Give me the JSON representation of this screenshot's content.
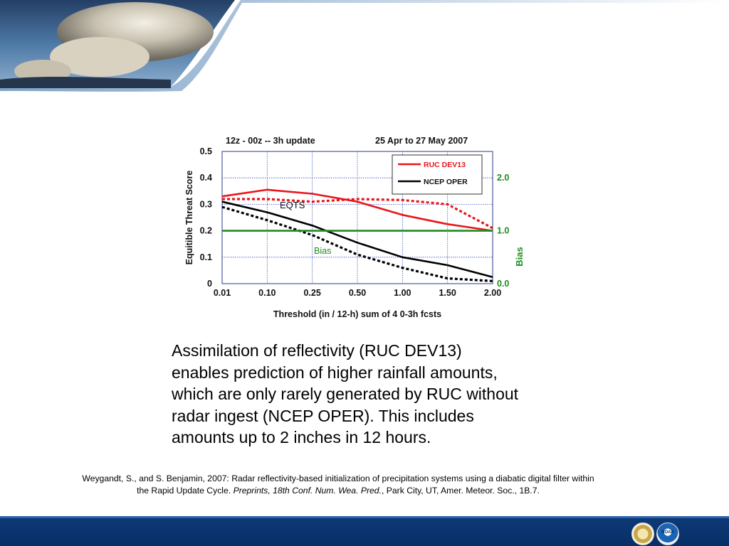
{
  "chart_data": {
    "type": "line",
    "title": "12z - 00z  --  3h update",
    "subtitle": "25 Apr to 27 May  2007",
    "xlabel": "Threshold (in / 12-h)    sum of 4 0-3h fcsts",
    "ylabel": "Equitible Threat Score",
    "y2label": "Bias",
    "categories": [
      "0.01",
      "0.10",
      "0.25",
      "0.50",
      "1.00",
      "1.50",
      "2.00"
    ],
    "ylim": [
      0,
      0.5
    ],
    "yticks": [
      "0.5",
      "0.4",
      "0.3",
      "0.2",
      "0.1",
      "0"
    ],
    "y2lim": [
      0,
      2.5
    ],
    "y2ticks": [
      "2.0",
      "1.0",
      "0.0"
    ],
    "grid": true,
    "legend_position": "top-right",
    "annotations": [
      "EQTS",
      "Bias"
    ],
    "series": [
      {
        "name": "RUC DEV13",
        "metric": "ETS",
        "color": "#e8161b",
        "style": "solid",
        "values": [
          0.33,
          0.355,
          0.34,
          0.31,
          0.26,
          0.225,
          0.2
        ]
      },
      {
        "name": "NCEP OPER",
        "metric": "ETS",
        "color": "#000000",
        "style": "solid",
        "values": [
          0.31,
          0.27,
          0.22,
          0.155,
          0.1,
          0.07,
          0.025
        ]
      },
      {
        "name": "RUC DEV13",
        "metric": "Bias",
        "color": "#e8161b",
        "style": "dashed",
        "values": [
          1.6,
          1.6,
          1.55,
          1.6,
          1.58,
          1.5,
          1.05
        ]
      },
      {
        "name": "NCEP OPER",
        "metric": "Bias",
        "color": "#000000",
        "style": "dashed",
        "values": [
          1.45,
          1.2,
          0.92,
          0.55,
          0.3,
          0.1,
          0.05
        ]
      },
      {
        "name": "Bias",
        "metric": "Bias",
        "color": "#1e8c1e",
        "style": "solid",
        "values": [
          1.0,
          1.0,
          1.0,
          1.0,
          1.0,
          1.0,
          1.0
        ]
      }
    ]
  },
  "caption": {
    "lines": [
      "Assimilation of reflectivity (RUC DEV13)",
      "enables prediction of higher rainfall amounts,",
      "which are only rarely generated by RUC without",
      "radar ingest (NCEP OPER).  This includes",
      "amounts up to 2 inches in 12 hours."
    ]
  },
  "citation": {
    "line1": "Weygandt, S., and S. Benjamin, 2007: Radar reflectivity-based initialization of precipitation systems using a diabatic digital filter within",
    "line2_plain": "the Rapid Update Cycle.  ",
    "line2_italic": "Preprints, 18th Conf. Num. Wea. Pred.",
    "line2_rest": ", Park City, UT, Amer. Meteor. Soc., 1B.7."
  },
  "footer": {
    "seal_noaa_label": "NOAA"
  },
  "colors": {
    "footer_bar": "#0b3570",
    "header_sky": "#3f6d9c",
    "header_swoosh": "#1f4f8f"
  }
}
